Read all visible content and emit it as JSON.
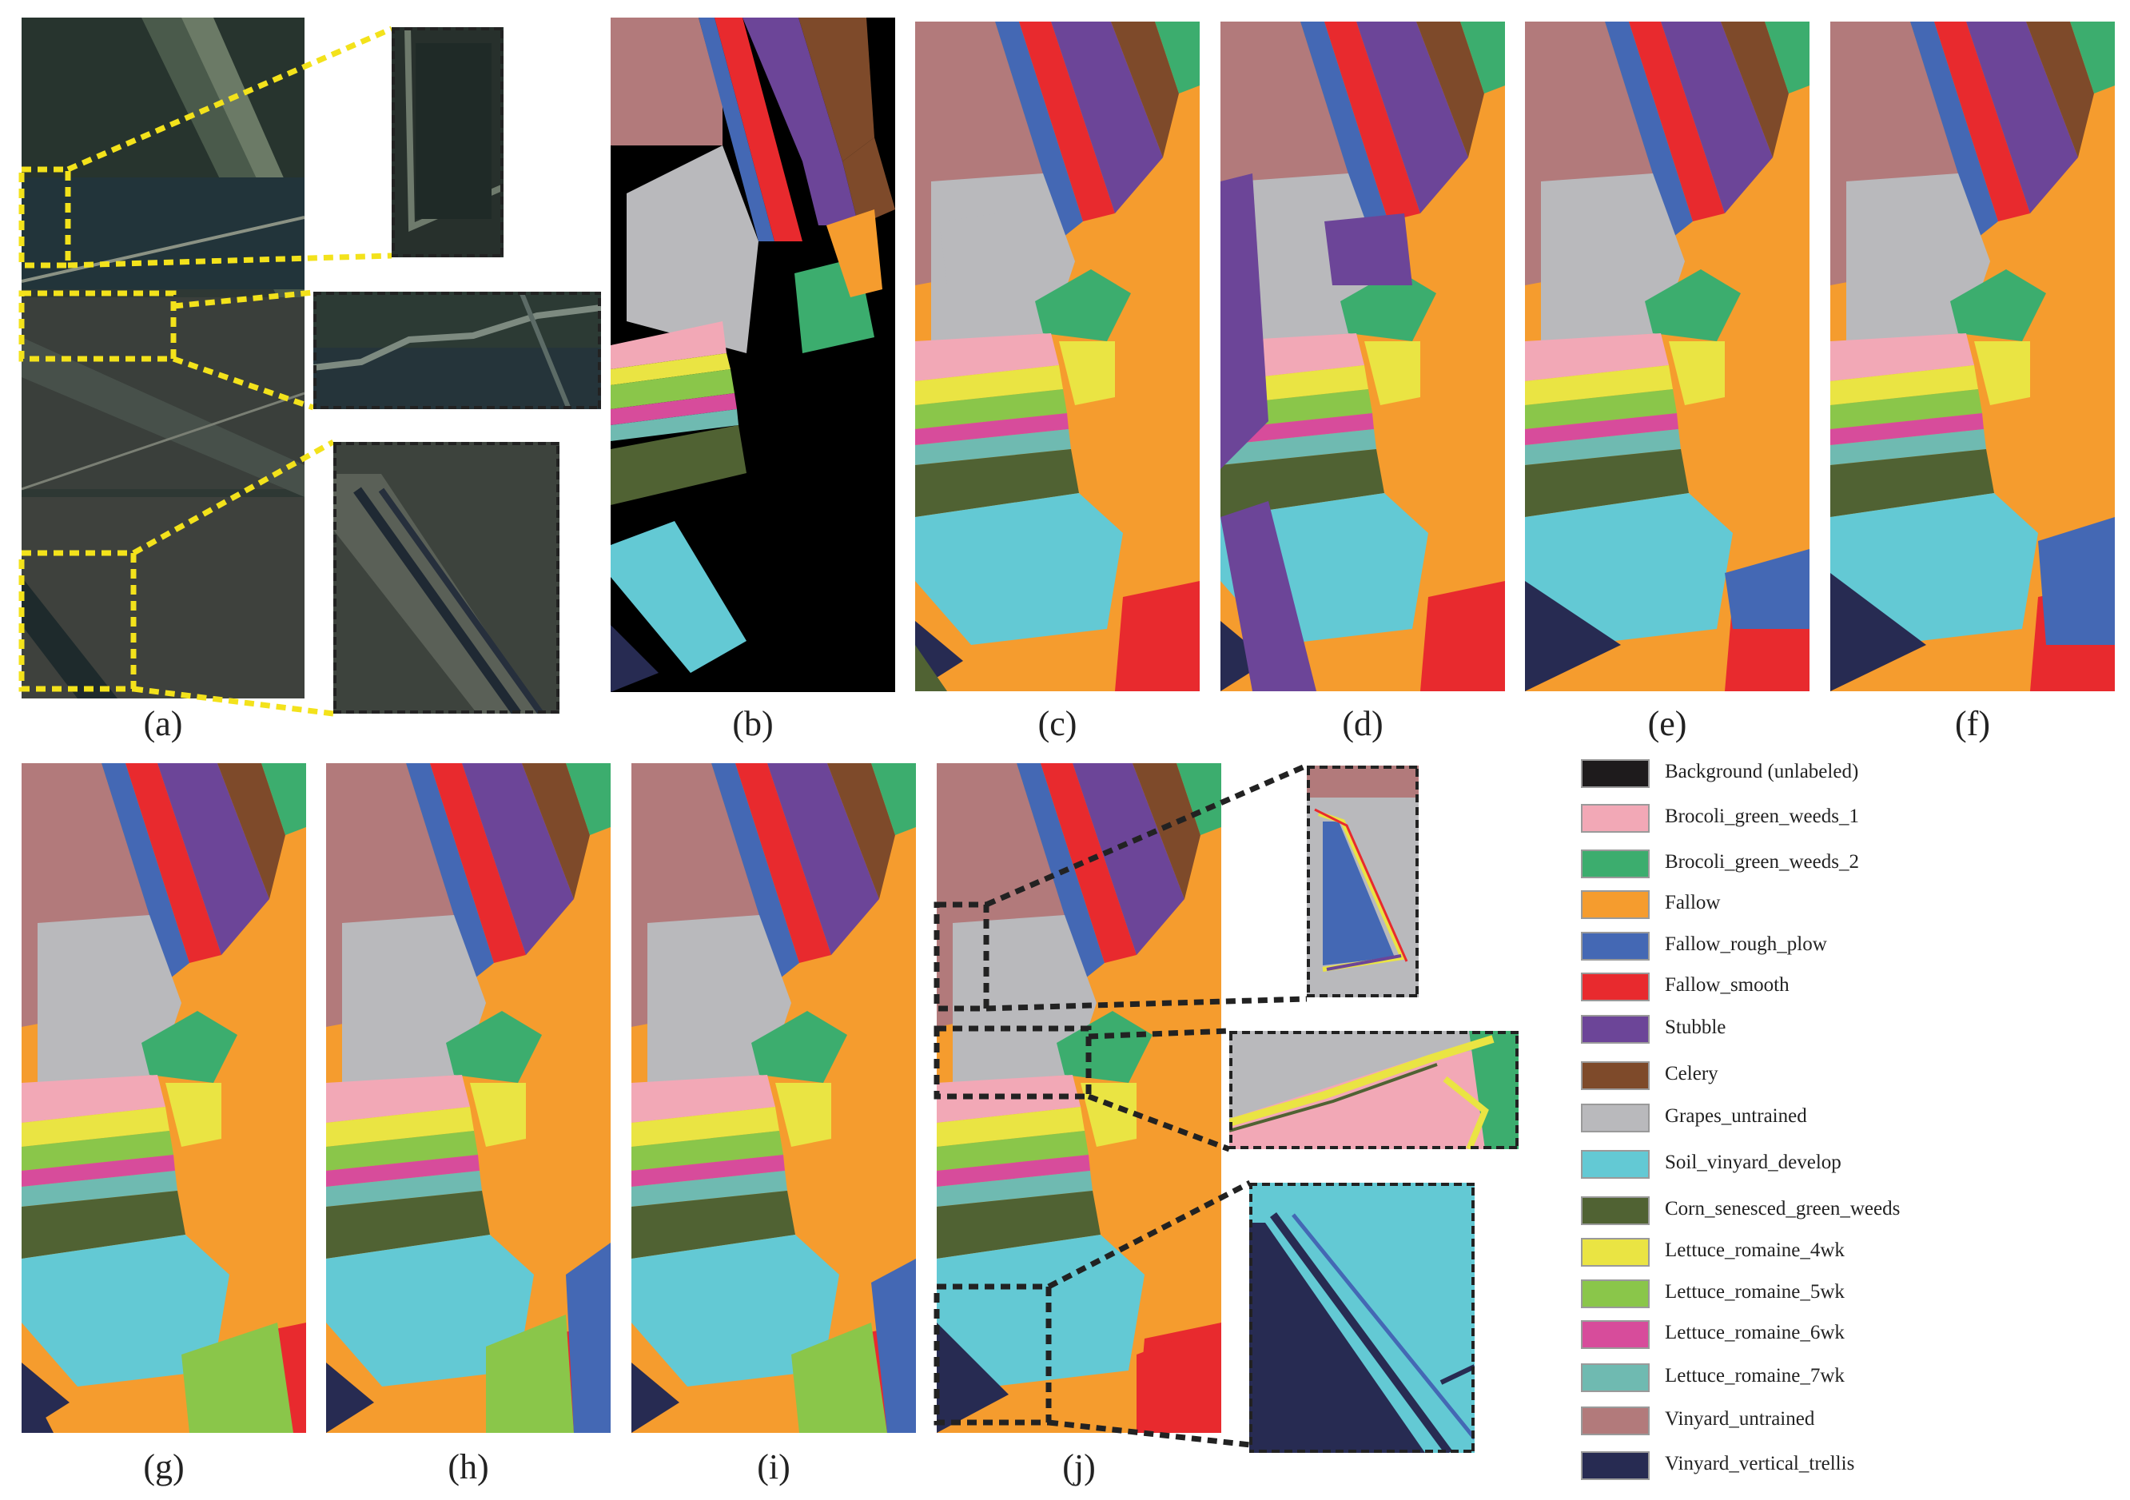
{
  "panels": [
    {
      "id": "a",
      "label": "(a)"
    },
    {
      "id": "b",
      "label": "(b)"
    },
    {
      "id": "c",
      "label": "(c)"
    },
    {
      "id": "d",
      "label": "(d)"
    },
    {
      "id": "e",
      "label": "(e)"
    },
    {
      "id": "f",
      "label": "(f)"
    },
    {
      "id": "g",
      "label": "(g)"
    },
    {
      "id": "h",
      "label": "(h)"
    },
    {
      "id": "i",
      "label": "(i)"
    },
    {
      "id": "j",
      "label": "(j)"
    }
  ],
  "legend": [
    {
      "label": "Background (unlabeled)",
      "color": "#1e1b1c"
    },
    {
      "label": "Brocoli_green_weeds_1",
      "color": "#f2a8b6"
    },
    {
      "label": "Brocoli_green_weeds_2",
      "color": "#3cad6e"
    },
    {
      "label": "Fallow",
      "color": "#f59c2e"
    },
    {
      "label": "Fallow_rough_plow",
      "color": "#4468b4"
    },
    {
      "label": "Fallow_smooth",
      "color": "#e82a2e"
    },
    {
      "label": "Stubble",
      "color": "#6c4598"
    },
    {
      "label": "Celery",
      "color": "#7e4a2a"
    },
    {
      "label": "Grapes_untrained",
      "color": "#b9b9bc"
    },
    {
      "label": "Soil_vinyard_develop",
      "color": "#63c9d4"
    },
    {
      "label": "Corn_senesced_green_weeds",
      "color": "#506233"
    },
    {
      "label": "Lettuce_romaine_4wk",
      "color": "#eae443"
    },
    {
      "label": "Lettuce_romaine_5wk",
      "color": "#8ac64a"
    },
    {
      "label": "Lettuce_romaine_6wk",
      "color": "#d74c9b"
    },
    {
      "label": "Lettuce_romaine_7wk",
      "color": "#6fbab1"
    },
    {
      "label": "Vinyard_untrained",
      "color": "#b27a7b"
    },
    {
      "label": "Vinyard_vertical_trellis",
      "color": "#272b52"
    }
  ],
  "colors": {
    "highlight_yellow": "#f3e21b",
    "zoom_frame": "#222222",
    "satellite_base": "#2f3a33"
  }
}
